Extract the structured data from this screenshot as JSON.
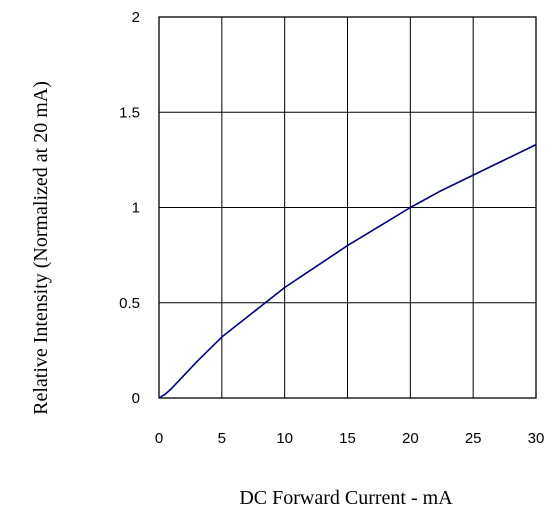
{
  "chart_data": {
    "type": "line",
    "title": "",
    "xlabel": "DC Forward Current - mA",
    "ylabel": "Relative Intensity (Normalized at 20 mA)",
    "xlim": [
      0,
      30
    ],
    "ylim": [
      0,
      2
    ],
    "x_ticks": [
      "0",
      "5",
      "10",
      "15",
      "20",
      "25",
      "30"
    ],
    "y_ticks": [
      "0",
      "0.5",
      "1",
      "1.5",
      "2"
    ],
    "grid": true,
    "legend": "none",
    "series": [
      {
        "color": "#000080",
        "x": [
          0,
          0.5,
          1,
          2,
          3,
          5,
          7.5,
          10,
          12.5,
          15,
          17.5,
          20,
          22.5,
          25,
          27.5,
          30
        ],
        "y": [
          0,
          0.02,
          0.05,
          0.12,
          0.19,
          0.32,
          0.45,
          0.58,
          0.69,
          0.8,
          0.9,
          1.0,
          1.09,
          1.17,
          1.25,
          1.33
        ]
      }
    ]
  }
}
